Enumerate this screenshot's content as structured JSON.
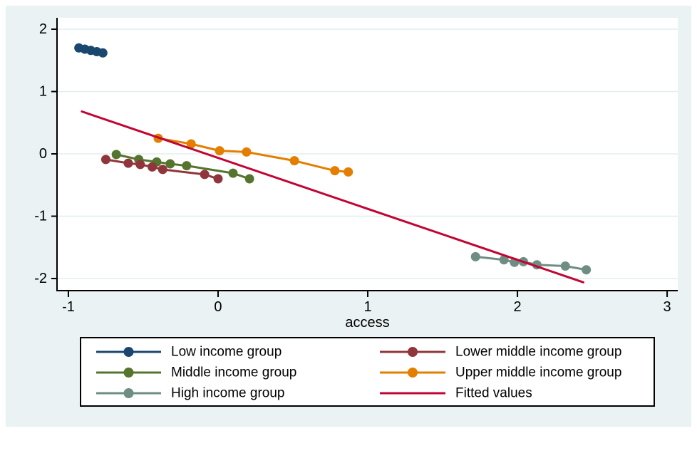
{
  "figure": {
    "background_color": "#eaf2f3",
    "plot_background": "#ffffff",
    "grid_color": "#e3edee",
    "axis_color": "#000000",
    "text_color": "#000000",
    "legend_border_color": "#000000",
    "legend_background": "#ffffff"
  },
  "chart_data": {
    "type": "line",
    "title": "",
    "xlabel": "access",
    "ylabel": "",
    "xlim": [
      -1.076,
      3.071
    ],
    "ylim": [
      -2.194,
      2.183
    ],
    "x_ticks": [
      -1,
      0,
      1,
      2,
      3
    ],
    "y_ticks": [
      2,
      1,
      0,
      -1,
      -2
    ],
    "grid": "horizontal",
    "legend_position": "bottom",
    "series": [
      {
        "name": "Low income group",
        "color": "#1a476f",
        "marker": true,
        "points": [
          [
            -0.93,
            1.7
          ],
          [
            -0.89,
            1.68
          ],
          [
            -0.85,
            1.66
          ],
          [
            -0.81,
            1.64
          ],
          [
            -0.77,
            1.62
          ]
        ]
      },
      {
        "name": "Middle income group",
        "color": "#55752f",
        "marker": true,
        "points": [
          [
            -0.68,
            -0.01
          ],
          [
            -0.53,
            -0.09
          ],
          [
            -0.41,
            -0.13
          ],
          [
            -0.32,
            -0.16
          ],
          [
            -0.21,
            -0.19
          ],
          [
            0.1,
            -0.31
          ],
          [
            0.21,
            -0.4
          ]
        ]
      },
      {
        "name": "Lower middle income group",
        "color": "#90353b",
        "marker": true,
        "points": [
          [
            -0.75,
            -0.09
          ],
          [
            -0.6,
            -0.15
          ],
          [
            -0.52,
            -0.17
          ],
          [
            -0.44,
            -0.21
          ],
          [
            -0.37,
            -0.25
          ],
          [
            -0.09,
            -0.33
          ],
          [
            0.0,
            -0.4
          ]
        ]
      },
      {
        "name": "Upper middle income group",
        "color": "#e37e00",
        "marker": true,
        "points": [
          [
            -0.4,
            0.25
          ],
          [
            -0.18,
            0.16
          ],
          [
            0.01,
            0.05
          ],
          [
            0.19,
            0.03
          ],
          [
            0.51,
            -0.11
          ],
          [
            0.78,
            -0.27
          ],
          [
            0.87,
            -0.29
          ]
        ]
      },
      {
        "name": "High income group",
        "color": "#6e8e84",
        "marker": true,
        "points": [
          [
            1.72,
            -1.65
          ],
          [
            1.91,
            -1.7
          ],
          [
            1.98,
            -1.74
          ],
          [
            2.04,
            -1.73
          ],
          [
            2.13,
            -1.78
          ],
          [
            2.32,
            -1.8
          ],
          [
            2.46,
            -1.86
          ]
        ]
      },
      {
        "name": "Fitted values",
        "color": "#c10534",
        "marker": false,
        "points": [
          [
            -0.91,
            0.68
          ],
          [
            2.44,
            -2.06
          ]
        ]
      }
    ],
    "legend": {
      "columns": [
        [
          "Low income group",
          "Middle income group",
          "High income group"
        ],
        [
          "Lower middle income group",
          "Upper middle income group",
          "Fitted values"
        ]
      ]
    }
  }
}
